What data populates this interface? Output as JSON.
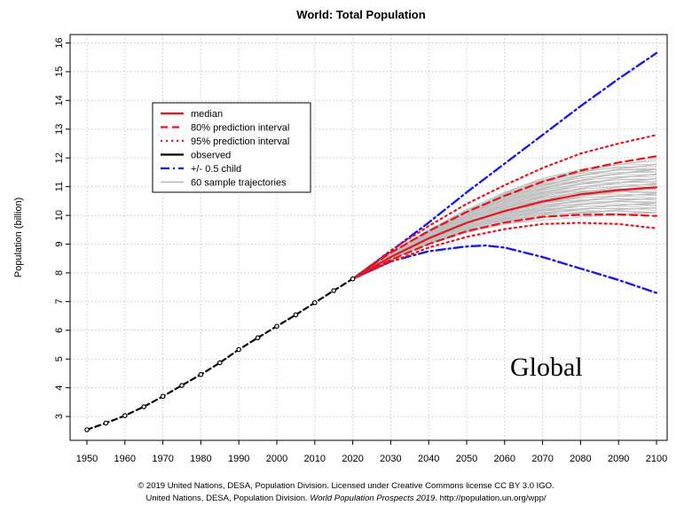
{
  "chart_data": {
    "type": "line",
    "title": "World: Total Population",
    "xlabel": "",
    "ylabel": "Population (billion)",
    "xlim": [
      1950,
      2100
    ],
    "ylim": [
      2,
      16
    ],
    "x_ticks": [
      1950,
      1960,
      1970,
      1980,
      1990,
      2000,
      2010,
      2020,
      2030,
      2040,
      2050,
      2060,
      2070,
      2080,
      2090,
      2100
    ],
    "y_ticks": [
      3,
      4,
      5,
      6,
      7,
      8,
      9,
      10,
      11,
      12,
      13,
      14,
      15,
      16
    ],
    "grid": true,
    "legend_position": "top-left",
    "legend": [
      {
        "label": "median",
        "color": "#e8141c",
        "dash": "solid"
      },
      {
        "label": "80% prediction interval",
        "color": "#e8141c",
        "dash": "dashed"
      },
      {
        "label": "95% prediction interval",
        "color": "#e8141c",
        "dash": "dotted"
      },
      {
        "label": "observed",
        "color": "#000000",
        "dash": "solid"
      },
      {
        "label": "+/- 0.5 child",
        "color": "#1a1aee",
        "dash": "dashdot"
      },
      {
        "label": "60 sample trajectories",
        "color": "#b4b4b4",
        "dash": "solid"
      }
    ],
    "series": [
      {
        "name": "observed",
        "x": [
          1950,
          1955,
          1960,
          1965,
          1970,
          1975,
          1980,
          1985,
          1990,
          1995,
          2000,
          2005,
          2010,
          2015,
          2020
        ],
        "values": [
          2.54,
          2.77,
          3.03,
          3.34,
          3.7,
          4.08,
          4.46,
          4.87,
          5.33,
          5.74,
          6.14,
          6.54,
          6.96,
          7.38,
          7.79
        ]
      },
      {
        "name": "median",
        "x": [
          2020,
          2030,
          2040,
          2050,
          2060,
          2070,
          2080,
          2090,
          2100
        ],
        "values": [
          7.79,
          8.55,
          9.2,
          9.74,
          10.15,
          10.48,
          10.73,
          10.88,
          10.98
        ]
      },
      {
        "name": "80% upper",
        "x": [
          2020,
          2030,
          2040,
          2050,
          2060,
          2070,
          2080,
          2090,
          2100
        ],
        "values": [
          7.79,
          8.7,
          9.45,
          10.12,
          10.68,
          11.17,
          11.56,
          11.84,
          12.06
        ]
      },
      {
        "name": "80% lower",
        "x": [
          2020,
          2030,
          2040,
          2050,
          2060,
          2070,
          2080,
          2090,
          2100
        ],
        "values": [
          7.79,
          8.45,
          9.0,
          9.45,
          9.75,
          9.95,
          10.02,
          10.03,
          9.98
        ]
      },
      {
        "name": "95% upper",
        "x": [
          2020,
          2030,
          2040,
          2050,
          2060,
          2070,
          2080,
          2090,
          2100
        ],
        "values": [
          7.79,
          8.78,
          9.63,
          10.4,
          11.05,
          11.65,
          12.15,
          12.5,
          12.8
        ]
      },
      {
        "name": "95% lower",
        "x": [
          2020,
          2030,
          2040,
          2050,
          2060,
          2070,
          2080,
          2090,
          2100
        ],
        "values": [
          7.79,
          8.38,
          8.88,
          9.25,
          9.52,
          9.7,
          9.74,
          9.7,
          9.55
        ]
      },
      {
        "name": "+0.5 child",
        "x": [
          2020,
          2030,
          2040,
          2050,
          2060,
          2070,
          2080,
          2090,
          2100
        ],
        "values": [
          7.79,
          8.75,
          9.75,
          10.8,
          11.8,
          12.8,
          13.8,
          14.75,
          15.65
        ]
      },
      {
        "name": "-0.5 child",
        "x": [
          2020,
          2030,
          2040,
          2050,
          2055,
          2060,
          2070,
          2080,
          2090,
          2100
        ],
        "values": [
          7.79,
          8.4,
          8.75,
          8.92,
          8.95,
          8.88,
          8.55,
          8.15,
          7.75,
          7.3
        ]
      }
    ],
    "sample_trajectory_band": {
      "x": [
        2020,
        2030,
        2040,
        2050,
        2060,
        2070,
        2080,
        2090,
        2100
      ],
      "low": [
        7.79,
        8.45,
        8.98,
        9.4,
        9.7,
        9.88,
        9.98,
        10.02,
        10.0
      ],
      "high": [
        7.79,
        8.72,
        9.5,
        10.2,
        10.8,
        11.3,
        11.6,
        11.8,
        11.9
      ],
      "count": 60
    },
    "annotation": "Global"
  },
  "credit": {
    "line1": "© 2019 United Nations, DESA, Population Division. Licensed under Creative Commons license CC BY 3.0 IGO.",
    "line2_prefix": "United Nations, DESA, Population Division.",
    "line2_italic": "World Population Prospects 2019",
    "line2_suffix": ". http://population.un.org/wpp/"
  }
}
